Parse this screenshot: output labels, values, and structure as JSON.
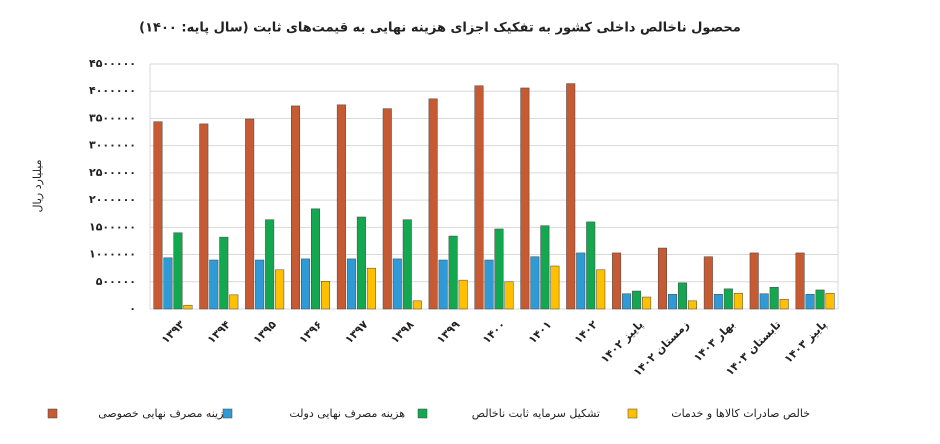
{
  "chart_data": {
    "type": "bar",
    "title": "محصول ناخالص داخلی کشور به تفکیک اجزای هزینه نهایی به قیمت‌های ثابت (سال پایه: ۱۴۰۰)",
    "y_label": "میلیارد ریال",
    "categories": [
      "۱۳۹۳",
      "۱۳۹۴",
      "۱۳۹۵",
      "۱۳۹۶",
      "۱۳۹۷",
      "۱۳۹۸",
      "۱۳۹۹",
      "۱۴۰۰",
      "۱۴۰۱",
      "۱۴۰۲",
      "پاییز ۱۴۰۲",
      "زمستان ۱۴۰۲",
      "بهار ۱۴۰۳",
      "تابستان ۱۴۰۳",
      "پاییز ۱۴۰۳"
    ],
    "series": [
      {
        "name": "هزینه مصرف نهایی خصوصی",
        "color": "#c55a33",
        "values": [
          3440000,
          3400000,
          3490000,
          3730000,
          3750000,
          3680000,
          3860000,
          4100000,
          4060000,
          4140000,
          1030000,
          1120000,
          960000,
          1030000,
          1030000
        ]
      },
      {
        "name": "هزینه مصرف نهایی دولت",
        "color": "#2e9bd6",
        "values": [
          940000,
          900000,
          900000,
          920000,
          920000,
          920000,
          900000,
          900000,
          960000,
          1030000,
          280000,
          270000,
          270000,
          280000,
          270000
        ]
      },
      {
        "name": "تشکیل سرمایه ثابت ناخالص",
        "color": "#13a84f",
        "values": [
          1400000,
          1320000,
          1640000,
          1840000,
          1690000,
          1640000,
          1340000,
          1470000,
          1530000,
          1600000,
          330000,
          480000,
          370000,
          400000,
          350000
        ]
      },
      {
        "name": "خالص صادرات کالاها و خدمات",
        "color": "#ffc000",
        "values": [
          70000,
          260000,
          720000,
          510000,
          750000,
          150000,
          530000,
          500000,
          790000,
          720000,
          220000,
          150000,
          290000,
          180000,
          290000
        ]
      }
    ],
    "ylim": [
      0,
      4500000
    ],
    "yticks": [
      {
        "value": 0,
        "label": "۰"
      },
      {
        "value": 500000,
        "label": "۵۰۰۰۰۰"
      },
      {
        "value": 1000000,
        "label": "۱۰۰۰۰۰۰"
      },
      {
        "value": 1500000,
        "label": "۱۵۰۰۰۰۰"
      },
      {
        "value": 2000000,
        "label": "۲۰۰۰۰۰۰"
      },
      {
        "value": 2500000,
        "label": "۲۵۰۰۰۰۰"
      },
      {
        "value": 3000000,
        "label": "۳۰۰۰۰۰۰"
      },
      {
        "value": 3500000,
        "label": "۳۵۰۰۰۰۰"
      },
      {
        "value": 4000000,
        "label": "۴۰۰۰۰۰۰"
      },
      {
        "value": 4500000,
        "label": "۴۵۰۰۰۰۰"
      }
    ],
    "grid": true,
    "legend": "bottom"
  }
}
